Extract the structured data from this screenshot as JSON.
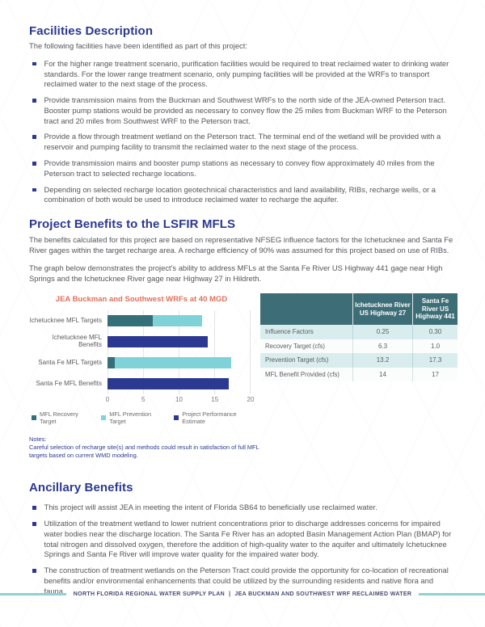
{
  "facilities": {
    "title": "Facilities Description",
    "intro": "The following facilities have been identified as part of this project:",
    "bullets": [
      "For the higher range treatment scenario, purification facilities would be required to treat reclaimed water to drinking water standards. For the lower range treatment scenario, only pumping facilities will be provided at the WRFs to transport reclaimed water to the next stage of the process.",
      "Provide transmission mains from the Buckman and Southwest WRFs to the north side of the JEA-owned Peterson tract. Booster pump stations would be provided as necessary to convey flow the 25 miles from Buckman WRF to the Peterson tract and 20 miles from Southwest WRF to the Peterson tract.",
      "Provide a flow through treatment wetland on the Peterson tract.  The terminal end of the wetland will be provided with a reservoir and pumping facility to transmit the reclaimed water to the next stage of the process.",
      "Provide transmission mains and booster pump stations as necessary to convey flow approximately 40 miles from the Peterson tract to selected recharge locations.",
      "Depending on selected recharge location geotechnical characteristics and land availability, RIBs, recharge wells, or a combination of both would be used to introduce reclaimed water to recharge the aquifer."
    ]
  },
  "benefits": {
    "title": "Project Benefits to the LSFIR MFLS",
    "para1": "The benefits calculated for this project are based on representative NFSEG influence factors for the Ichetucknee and Santa Fe River gages within the target recharge area. A recharge efficiency of 90% was assumed for this project based on use of RIBs.",
    "para2": "The graph below demonstrates the project's ability to address MFLs at the Santa Fe River US Highway 441 gage near High Springs and the Ichetucknee River gage near Highway 27 in Hildreth."
  },
  "chart_data": {
    "type": "bar",
    "orientation": "horizontal",
    "stacked": true,
    "title": "JEA Buckman and Southwest WRFs at 40 MGD",
    "categories": [
      "Ichetucknee MFL Targets",
      "Ichetucknee MFL Benefits",
      "Santa Fe MFL Targets",
      "Santa Fe MFL Benefits"
    ],
    "series": [
      {
        "name": "MFL Recovery Target",
        "color": "#35707a",
        "values": [
          6.3,
          0,
          1.0,
          0
        ]
      },
      {
        "name": "MFL Prevention Target",
        "color": "#7fd3d8",
        "values": [
          6.9,
          0,
          16.3,
          0
        ]
      },
      {
        "name": "Project Performance Estimate",
        "color": "#2b3990",
        "values": [
          0,
          14,
          0,
          17
        ]
      }
    ],
    "stack_totals": [
      13.2,
      14,
      17.3,
      17
    ],
    "xlabel": "",
    "ylabel": "",
    "xlim": [
      0,
      20
    ],
    "xticks": [
      0,
      5,
      10,
      15,
      20
    ],
    "grid": true,
    "legend_position": "bottom"
  },
  "table": {
    "col_headers": [
      "",
      "Ichetucknee River US Highway 27",
      "Santa Fe River US Highway 441"
    ],
    "rows": [
      {
        "label": "Influence Factors",
        "values": [
          "0.25",
          "0.30"
        ]
      },
      {
        "label": "Recovery Target (cfs)",
        "values": [
          "6.3",
          "1.0"
        ]
      },
      {
        "label": "Prevention Target (cfs)",
        "values": [
          "13.2",
          "17.3"
        ]
      },
      {
        "label": "MFL Benefit Provided (cfs)",
        "values": [
          "14",
          "17"
        ]
      }
    ]
  },
  "notes": {
    "label": "Notes:",
    "text": "Careful selection of recharge site(s) and methods could result in satisfaction of full MFL targets based on current WMD modeling."
  },
  "ancillary": {
    "title": "Ancillary Benefits",
    "bullets": [
      "This project will assist JEA in meeting the intent of Florida SB64 to beneficially use reclaimed water.",
      "Utilization of the treatment wetland to lower nutrient concentrations prior to discharge addresses concerns for impaired water bodies near the discharge location. The Santa Fe River has an adopted Basin Management Action Plan (BMAP) for total nitrogen and dissolved oxygen, therefore the addition of high-quality water to the aquifer and ultimately Ichetucknee Springs and Santa Fe River will improve water quality for the impaired water body.",
      "The construction of treatment wetlands on the Peterson Tract could provide the opportunity for co-location of recreational benefits and/or environmental enhancements that could be utilized by the surrounding residents and native flora and fauna."
    ]
  },
  "footer": {
    "left": "NORTH FLORIDA REGIONAL WATER SUPPLY PLAN",
    "separator": "|",
    "right": "JEA BUCKMAN AND SOUTHWEST WRF RECLAIMED WATER"
  },
  "colors": {
    "heading_navy": "#2b3990",
    "body_gray": "#55565a",
    "chart_title_coral": "#e0705a",
    "recovery_teal": "#35707a",
    "prevention_teal": "#7fd3d8",
    "performance_navy": "#2b3990",
    "table_header_teal": "#3d6e77",
    "table_row_teal": "#d9edee",
    "footer_rule_teal": "#8ed2d4",
    "footer_text_navy": "#474a6f"
  }
}
